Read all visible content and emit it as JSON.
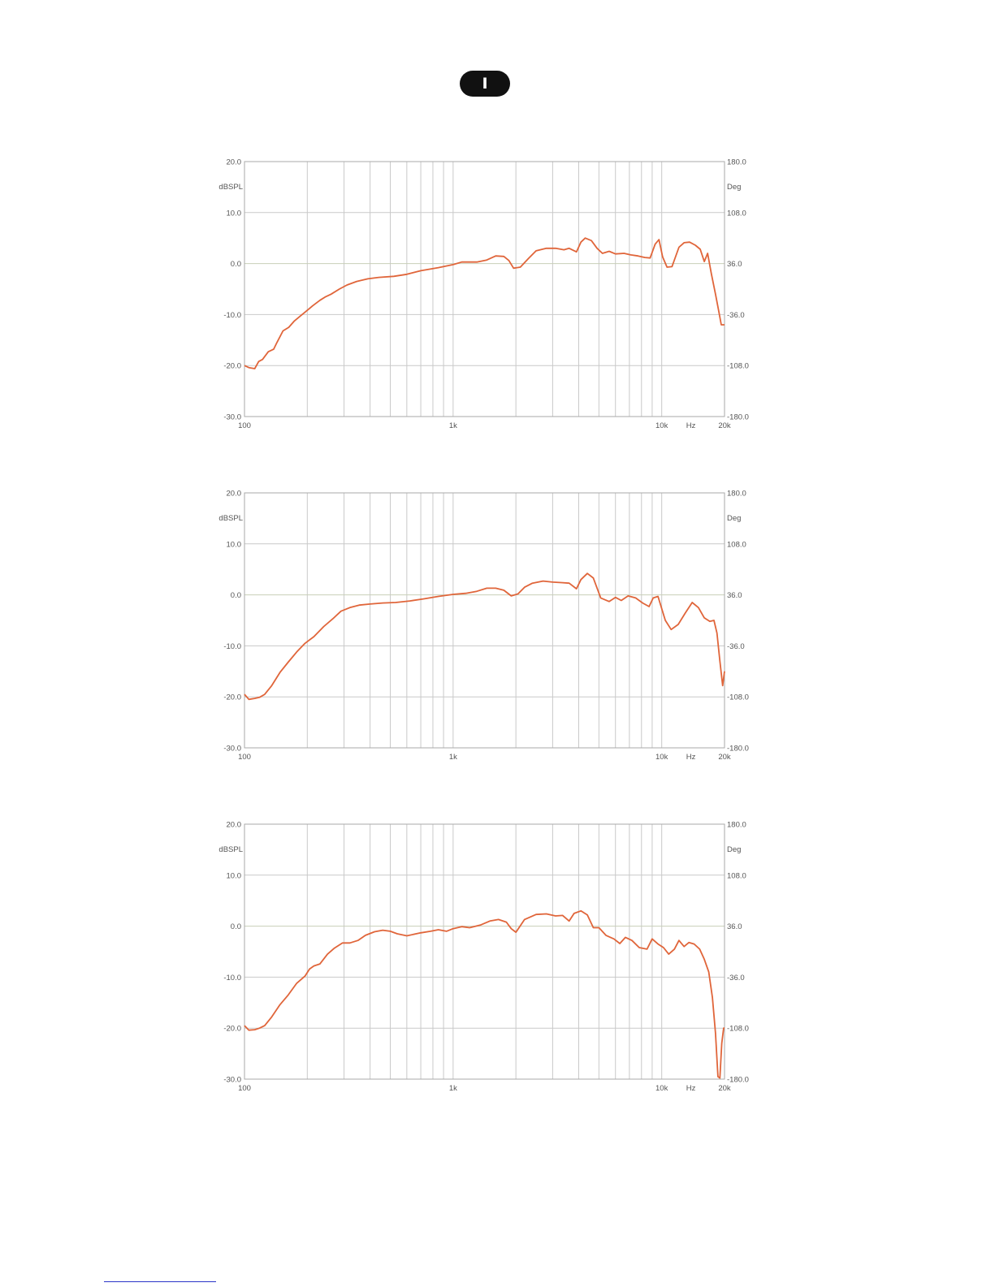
{
  "badge": {
    "label": "I"
  },
  "colors": {
    "curve": "#e0653a",
    "grid": "#c9c9c9",
    "zero_line": "#c8cfb8",
    "frame": "#aaaaaa",
    "badge_bg": "#111111"
  },
  "chart_data": [
    {
      "type": "line",
      "x_scale": "log",
      "xlim": [
        100,
        20000
      ],
      "ylim": [
        -30,
        20
      ],
      "y2lim": [
        -180,
        180
      ],
      "grid": true,
      "ylabel": "dBSPL",
      "y2label": "Deg",
      "xunit": "Hz",
      "x_ticks": [
        "100",
        "1k",
        "10k",
        "20k"
      ],
      "y_ticks": [
        "20.0",
        "10.0",
        "0.0",
        "-10.0",
        "-20.0",
        "-30.0"
      ],
      "y2_ticks": [
        "180.0",
        "108.0",
        "36.0",
        "-36.0",
        "-108.0",
        "-180.0"
      ],
      "series": [
        {
          "x": [
            100,
            105,
            112,
            117,
            122,
            130,
            138,
            143,
            153,
            163,
            173,
            185,
            197,
            212,
            230,
            245,
            260,
            285,
            310,
            345,
            390,
            440,
            520,
            600,
            700,
            850,
            1000,
            1100,
            1300,
            1450,
            1600,
            1750,
            1850,
            1950,
            2100,
            2300,
            2500,
            2800,
            3100,
            3400,
            3600,
            3900,
            4100,
            4300,
            4600,
            4900,
            5200,
            5600,
            6000,
            6600,
            7100,
            7700,
            8300,
            8800,
            9300,
            9700,
            10100,
            10600,
            11200,
            12100,
            12800,
            13600,
            14500,
            15300,
            16000,
            16600,
            17300,
            18100,
            18800,
            19300,
            20000
          ],
          "y": [
            -20,
            -20.4,
            -20.6,
            -19.2,
            -18.8,
            -17.3,
            -16.8,
            -15.5,
            -13.2,
            -12.5,
            -11.3,
            -10.3,
            -9.4,
            -8.3,
            -7.2,
            -6.5,
            -6,
            -5.0,
            -4.2,
            -3.5,
            -3.0,
            -2.7,
            -2.5,
            -2.1,
            -1.4,
            -0.8,
            -0.2,
            0.3,
            0.3,
            0.7,
            1.5,
            1.4,
            0.6,
            -0.9,
            -0.7,
            1.0,
            2.5,
            3.0,
            3.0,
            2.7,
            3.0,
            2.3,
            4.2,
            5.0,
            4.5,
            3.0,
            2.0,
            2.4,
            1.9,
            2.0,
            1.7,
            1.5,
            1.2,
            1.1,
            3.8,
            4.7,
            1.3,
            -0.7,
            -0.6,
            3.2,
            4.1,
            4.2,
            3.6,
            2.8,
            0.4,
            2.0,
            -2.0,
            -6.0,
            -9.5,
            -12.0,
            -12.0
          ]
        }
      ]
    },
    {
      "type": "line",
      "x_scale": "log",
      "xlim": [
        100,
        20000
      ],
      "ylim": [
        -30,
        20
      ],
      "y2lim": [
        -180,
        180
      ],
      "grid": true,
      "ylabel": "dBSPL",
      "y2label": "Deg",
      "xunit": "Hz",
      "x_ticks": [
        "100",
        "1k",
        "10k",
        "20k"
      ],
      "y_ticks": [
        "20.0",
        "10.0",
        "0.0",
        "-10.0",
        "-20.0",
        "-30.0"
      ],
      "y2_ticks": [
        "180.0",
        "108.0",
        "36.0",
        "-36.0",
        "-108.0",
        "-180.0"
      ],
      "series": [
        {
          "x": [
            100,
            105,
            112,
            118,
            125,
            135,
            148,
            162,
            178,
            195,
            215,
            240,
            265,
            290,
            320,
            355,
            400,
            460,
            530,
            620,
            720,
            850,
            1000,
            1150,
            1300,
            1450,
            1600,
            1750,
            1900,
            2050,
            2200,
            2400,
            2700,
            3000,
            3300,
            3600,
            3900,
            4100,
            4400,
            4700,
            5100,
            5600,
            6000,
            6400,
            6900,
            7500,
            8100,
            8700,
            9100,
            9600,
            10400,
            11100,
            12000,
            13000,
            14000,
            15000,
            16000,
            17000,
            17800,
            18400,
            19000,
            19600,
            20000
          ],
          "y": [
            -19.5,
            -20.5,
            -20.3,
            -20.1,
            -19.5,
            -17.8,
            -15.2,
            -13.2,
            -11.2,
            -9.5,
            -8.2,
            -6.2,
            -4.7,
            -3.2,
            -2.5,
            -2.0,
            -1.8,
            -1.6,
            -1.5,
            -1.2,
            -0.8,
            -0.3,
            0.1,
            0.3,
            0.7,
            1.3,
            1.3,
            0.9,
            -0.2,
            0.2,
            1.5,
            2.3,
            2.7,
            2.5,
            2.4,
            2.3,
            1.2,
            3.0,
            4.2,
            3.3,
            -0.6,
            -1.3,
            -0.5,
            -1.1,
            -0.2,
            -0.6,
            -1.6,
            -2.3,
            -0.6,
            -0.3,
            -5.0,
            -6.8,
            -5.8,
            -3.5,
            -1.5,
            -2.5,
            -4.5,
            -5.2,
            -5.0,
            -7.5,
            -13.0,
            -17.8,
            -15.0
          ]
        }
      ]
    },
    {
      "type": "line",
      "x_scale": "log",
      "xlim": [
        100,
        20000
      ],
      "ylim": [
        -30,
        20
      ],
      "y2lim": [
        -180,
        180
      ],
      "grid": true,
      "ylabel": "dBSPL",
      "y2label": "Deg",
      "xunit": "Hz",
      "x_ticks": [
        "100",
        "1k",
        "10k",
        "20k"
      ],
      "y_ticks": [
        "20.0",
        "10.0",
        "0.0",
        "-10.0",
        "-20.0",
        "-30.0"
      ],
      "y2_ticks": [
        "180.0",
        "108.0",
        "36.0",
        "-36.0",
        "-108.0",
        "-180.0"
      ],
      "series": [
        {
          "x": [
            100,
            105,
            112,
            118,
            125,
            135,
            148,
            162,
            178,
            195,
            205,
            215,
            230,
            250,
            270,
            295,
            320,
            350,
            380,
            420,
            460,
            500,
            540,
            600,
            700,
            780,
            850,
            930,
            1000,
            1100,
            1200,
            1350,
            1500,
            1650,
            1800,
            1900,
            2000,
            2200,
            2500,
            2800,
            3100,
            3350,
            3600,
            3800,
            4100,
            4400,
            4700,
            5000,
            5400,
            5900,
            6300,
            6700,
            7200,
            7800,
            8500,
            9000,
            9600,
            10200,
            10800,
            11500,
            12100,
            12800,
            13500,
            14300,
            15200,
            16000,
            16800,
            17500,
            18100,
            18600,
            19000,
            19400,
            19800,
            20000
          ],
          "y": [
            -19.5,
            -20.4,
            -20.3,
            -20.0,
            -19.5,
            -17.8,
            -15.4,
            -13.5,
            -11.2,
            -9.8,
            -8.4,
            -7.8,
            -7.4,
            -5.5,
            -4.3,
            -3.3,
            -3.3,
            -2.8,
            -1.8,
            -1.1,
            -0.8,
            -1.0,
            -1.5,
            -1.9,
            -1.3,
            -1.0,
            -0.7,
            -1.0,
            -0.5,
            -0.1,
            -0.3,
            0.2,
            1.0,
            1.3,
            0.8,
            -0.5,
            -1.2,
            1.3,
            2.3,
            2.4,
            2.0,
            2.1,
            1.0,
            2.5,
            3.0,
            2.2,
            -0.3,
            -0.3,
            -1.8,
            -2.5,
            -3.4,
            -2.2,
            -2.8,
            -4.2,
            -4.5,
            -2.5,
            -3.5,
            -4.2,
            -5.5,
            -4.5,
            -2.8,
            -4.0,
            -3.2,
            -3.5,
            -4.5,
            -6.5,
            -9.0,
            -14.0,
            -21.0,
            -29.5,
            -29.8,
            -23.0,
            -20.0,
            -20.0
          ]
        }
      ]
    }
  ]
}
